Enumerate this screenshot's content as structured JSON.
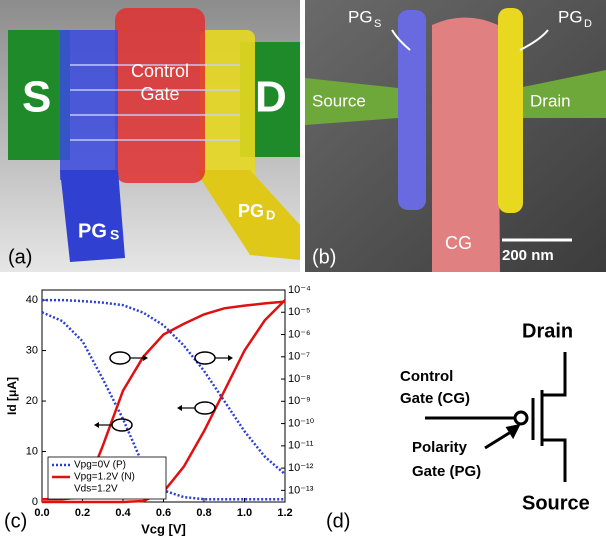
{
  "panel_labels": [
    "(a)",
    "(b)",
    "(c)",
    "(d)"
  ],
  "panel_a": {
    "source": "S",
    "drain": "D",
    "control_gate": [
      "Control",
      "Gate"
    ],
    "pg_s": {
      "base": "PG",
      "sub": "S"
    },
    "pg_d": {
      "base": "PG",
      "sub": "D"
    }
  },
  "panel_b": {
    "pg_s": {
      "base": "PG",
      "sub": "S"
    },
    "pg_d": {
      "base": "PG",
      "sub": "D"
    },
    "source": "Source",
    "drain": "Drain",
    "cg": "CG",
    "scale_bar": "200 nm"
  },
  "chart_data": {
    "type": "line",
    "x_label": "Vcg [V]",
    "y_label": "Id [μA]",
    "x": [
      0,
      0.1,
      0.2,
      0.3,
      0.4,
      0.5,
      0.6,
      0.7,
      0.8,
      0.9,
      1.0,
      1.1,
      1.2
    ],
    "xlim": [
      0,
      1.2
    ],
    "xticks": [
      {
        "value": 0,
        "label": "0.0"
      },
      0.2,
      0.4,
      0.6,
      0.8,
      {
        "value": 1,
        "label": "1.0"
      },
      1.2
    ],
    "ylim": [
      0,
      42
    ],
    "yticks": [
      0,
      10,
      20,
      30,
      40
    ],
    "y2lim": [
      3e-14,
      0.0001
    ],
    "y2_log": true,
    "y2ticks": [
      {
        "value": 1e-13,
        "label": "10⁻¹³"
      },
      {
        "value": 1e-12,
        "label": "10⁻¹²"
      },
      {
        "value": 1e-11,
        "label": "10⁻¹¹"
      },
      {
        "value": 1e-10,
        "label": "10⁻¹⁰"
      },
      {
        "value": 1e-09,
        "label": "10⁻⁹"
      },
      {
        "value": 1e-08,
        "label": "10⁻⁸"
      },
      {
        "value": 1e-07,
        "label": "10⁻⁷"
      },
      {
        "value": 1e-06,
        "label": "10⁻⁶"
      },
      {
        "value": 1e-05,
        "label": "10⁻⁵"
      },
      {
        "value": 0.0001,
        "label": "10⁻⁴"
      }
    ],
    "series": [
      {
        "name": "Vpg=0V (P)",
        "color": "#2a3fd6",
        "style": "dotted",
        "values": [
          40,
          40,
          39.8,
          39.5,
          39,
          37.5,
          35,
          31,
          26,
          20,
          14,
          9,
          5.5
        ]
      },
      {
        "name": "Vpg=1.2V (N)",
        "color": "#e01010",
        "style": "solid",
        "values": [
          0,
          0,
          0,
          0,
          0,
          0.2,
          2,
          7,
          14,
          22,
          30,
          36,
          40
        ]
      },
      {
        "color": "#2a3fd6",
        "style": "dotted",
        "axis": "y2",
        "values": [
          1e-05,
          4e-06,
          5e-07,
          1e-08,
          1.6e-10,
          1.3e-12,
          1e-13,
          5e-14,
          4e-14,
          4e-14,
          4e-14,
          4e-14,
          4e-14
        ]
      },
      {
        "color": "#e01010",
        "style": "solid",
        "axis": "y2",
        "values": [
          4e-14,
          4e-14,
          5e-14,
          1e-11,
          3e-09,
          1e-07,
          1e-06,
          3e-06,
          8e-06,
          1.5e-05,
          2e-05,
          2.5e-05,
          3e-05
        ]
      }
    ],
    "annotation": "Vds=1.2V"
  },
  "panel_d": {
    "drain": "Drain",
    "source": "Source",
    "control_gate": [
      "Control",
      "Gate (CG)"
    ],
    "polarity_gate": [
      "Polarity",
      "Gate (PG)"
    ]
  }
}
